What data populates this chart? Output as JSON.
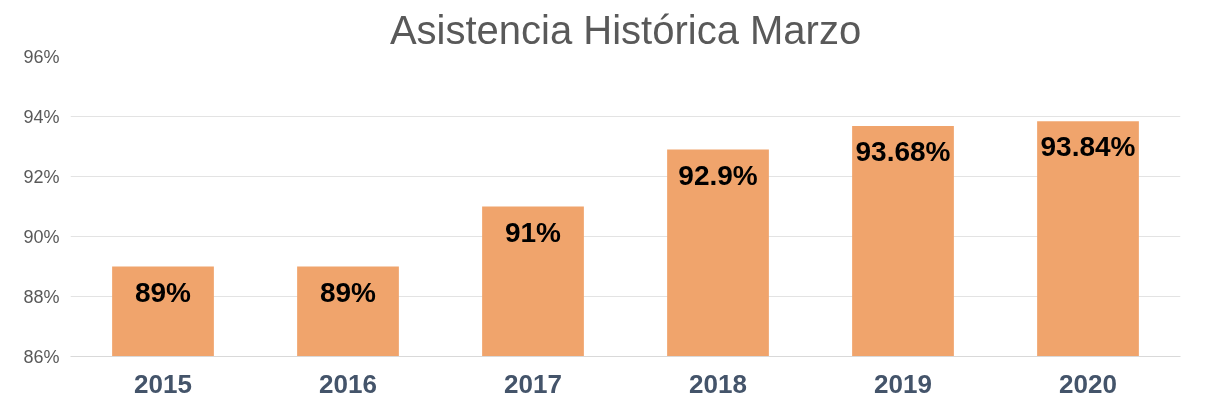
{
  "chart_data": {
    "type": "bar",
    "title": "Asistencia Histórica Marzo",
    "categories": [
      "2015",
      "2016",
      "2017",
      "2018",
      "2019",
      "2020"
    ],
    "values": [
      89,
      89,
      91,
      92.9,
      93.68,
      93.84
    ],
    "value_labels": [
      "89%",
      "89%",
      "91%",
      "92.9%",
      "93.68%",
      "93.84%"
    ],
    "color": "#f0a46c",
    "ylim": [
      86,
      96
    ],
    "yticks": [
      {
        "value": 86,
        "label": "86%"
      },
      {
        "value": 88,
        "label": "88%"
      },
      {
        "value": 90,
        "label": "90%"
      },
      {
        "value": 92,
        "label": "92%"
      },
      {
        "value": 94,
        "label": "94%"
      },
      {
        "value": 96,
        "label": "96%"
      }
    ],
    "grid": "y"
  }
}
